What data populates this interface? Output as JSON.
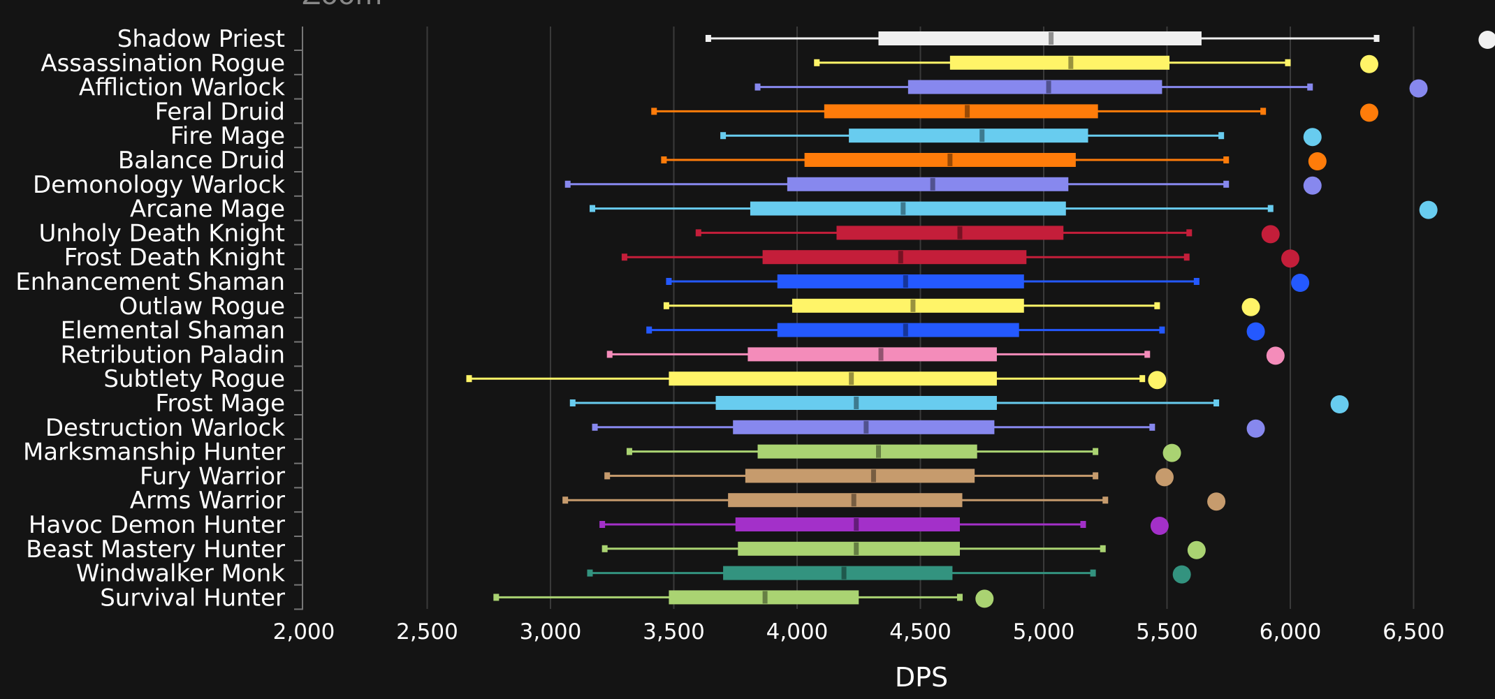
{
  "top_text": "Zoom",
  "chart_data": {
    "type": "box",
    "xlabel": "DPS",
    "xlim": [
      2000,
      6800
    ],
    "xticks": [
      2000,
      2500,
      3000,
      3500,
      4000,
      4500,
      5000,
      5500,
      6000,
      6500
    ],
    "xtick_labels": [
      "2,000",
      "2,500",
      "3,000",
      "3,500",
      "4,000",
      "4,500",
      "5,000",
      "5,500",
      "6,000",
      "6,500"
    ],
    "grid": true,
    "series": [
      {
        "name": "Shadow Priest",
        "color": "#f0f0f0",
        "min": 3640,
        "q1": 4330,
        "median": 5030,
        "q3": 5640,
        "max": 6350,
        "outlier": 6800
      },
      {
        "name": "Assassination Rogue",
        "color": "#fff468",
        "min": 4080,
        "q1": 4620,
        "median": 5110,
        "q3": 5510,
        "max": 5990,
        "outlier": 6320
      },
      {
        "name": "Affliction Warlock",
        "color": "#8788ee",
        "min": 3840,
        "q1": 4450,
        "median": 5020,
        "q3": 5480,
        "max": 6080,
        "outlier": 6520
      },
      {
        "name": "Feral Druid",
        "color": "#ff7c0a",
        "min": 3420,
        "q1": 4110,
        "median": 4690,
        "q3": 5220,
        "max": 5890,
        "outlier": 6320
      },
      {
        "name": "Fire Mage",
        "color": "#68ccef",
        "min": 3700,
        "q1": 4210,
        "median": 4750,
        "q3": 5180,
        "max": 5720,
        "outlier": 6090
      },
      {
        "name": "Balance Druid",
        "color": "#ff7c0a",
        "min": 3460,
        "q1": 4030,
        "median": 4620,
        "q3": 5130,
        "max": 5740,
        "outlier": 6110
      },
      {
        "name": "Demonology Warlock",
        "color": "#8788ee",
        "min": 3070,
        "q1": 3960,
        "median": 4550,
        "q3": 5100,
        "max": 5740,
        "outlier": 6090
      },
      {
        "name": "Arcane Mage",
        "color": "#68ccef",
        "min": 3170,
        "q1": 3810,
        "median": 4430,
        "q3": 5090,
        "max": 5920,
        "outlier": 6560
      },
      {
        "name": "Unholy Death Knight",
        "color": "#c41e3a",
        "min": 3600,
        "q1": 4160,
        "median": 4660,
        "q3": 5080,
        "max": 5590,
        "outlier": 5920
      },
      {
        "name": "Frost Death Knight",
        "color": "#c41e3a",
        "min": 3300,
        "q1": 3860,
        "median": 4420,
        "q3": 4930,
        "max": 5580,
        "outlier": 6000
      },
      {
        "name": "Enhancement Shaman",
        "color": "#2459ff",
        "min": 3480,
        "q1": 3920,
        "median": 4440,
        "q3": 4920,
        "max": 5620,
        "outlier": 6040
      },
      {
        "name": "Outlaw Rogue",
        "color": "#fff468",
        "min": 3470,
        "q1": 3980,
        "median": 4470,
        "q3": 4920,
        "max": 5460,
        "outlier": 5840
      },
      {
        "name": "Elemental Shaman",
        "color": "#2459ff",
        "min": 3400,
        "q1": 3920,
        "median": 4440,
        "q3": 4900,
        "max": 5480,
        "outlier": 5860
      },
      {
        "name": "Retribution Paladin",
        "color": "#f48cba",
        "min": 3240,
        "q1": 3800,
        "median": 4340,
        "q3": 4810,
        "max": 5420,
        "outlier": 5940
      },
      {
        "name": "Subtlety Rogue",
        "color": "#fff468",
        "min": 2670,
        "q1": 3480,
        "median": 4220,
        "q3": 4810,
        "max": 5400,
        "outlier": 5460
      },
      {
        "name": "Frost Mage",
        "color": "#68ccef",
        "min": 3090,
        "q1": 3670,
        "median": 4240,
        "q3": 4810,
        "max": 5700,
        "outlier": 6200
      },
      {
        "name": "Destruction Warlock",
        "color": "#8788ee",
        "min": 3180,
        "q1": 3740,
        "median": 4280,
        "q3": 4800,
        "max": 5440,
        "outlier": 5860
      },
      {
        "name": "Marksmanship Hunter",
        "color": "#aad372",
        "min": 3320,
        "q1": 3840,
        "median": 4330,
        "q3": 4730,
        "max": 5210,
        "outlier": 5520
      },
      {
        "name": "Fury Warrior",
        "color": "#c69b6d",
        "min": 3230,
        "q1": 3790,
        "median": 4310,
        "q3": 4720,
        "max": 5210,
        "outlier": 5490
      },
      {
        "name": "Arms Warrior",
        "color": "#c69b6d",
        "min": 3060,
        "q1": 3720,
        "median": 4230,
        "q3": 4670,
        "max": 5250,
        "outlier": 5700
      },
      {
        "name": "Havoc Demon Hunter",
        "color": "#a330c9",
        "min": 3210,
        "q1": 3750,
        "median": 4240,
        "q3": 4660,
        "max": 5160,
        "outlier": 5470
      },
      {
        "name": "Beast Mastery Hunter",
        "color": "#aad372",
        "min": 3220,
        "q1": 3760,
        "median": 4240,
        "q3": 4660,
        "max": 5240,
        "outlier": 5620
      },
      {
        "name": "Windwalker Monk",
        "color": "#33937f",
        "min": 3160,
        "q1": 3700,
        "median": 4190,
        "q3": 4630,
        "max": 5200,
        "outlier": 5560
      },
      {
        "name": "Survival Hunter",
        "color": "#aad372",
        "min": 2780,
        "q1": 3480,
        "median": 3870,
        "q3": 4250,
        "max": 4660,
        "outlier": 4760
      }
    ]
  }
}
